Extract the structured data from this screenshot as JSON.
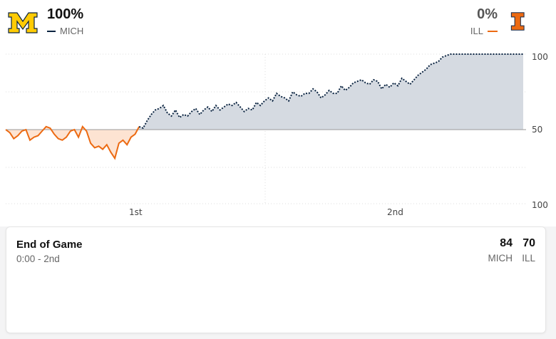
{
  "teams": {
    "home": {
      "abbr": "MICH",
      "win_prob": "100%",
      "logo": "M",
      "color": "#0b2441",
      "logo_color": "#ffcb05"
    },
    "away": {
      "abbr": "ILL",
      "win_prob": "0%",
      "logo": "I",
      "color": "#ec6a12"
    }
  },
  "chart_data": {
    "type": "area",
    "title": "",
    "x_period_labels": [
      "1st",
      "2nd"
    ],
    "y_tick_labels": [
      "100",
      "50",
      "100"
    ],
    "midline": 50,
    "ylim": [
      0,
      100
    ],
    "series": [
      {
        "name": "MICH",
        "values": [
          50,
          48,
          44,
          46,
          49,
          50,
          43,
          45,
          46,
          49,
          52,
          51,
          47,
          44,
          43,
          45,
          49,
          50,
          45,
          52,
          49,
          41,
          38,
          39,
          37,
          40,
          35,
          31,
          41,
          43,
          40,
          45,
          47,
          52,
          51,
          56,
          60,
          63,
          64,
          66,
          61,
          59,
          63,
          58,
          60,
          59,
          62,
          64,
          60,
          63,
          65,
          62,
          66,
          63,
          65,
          67,
          66,
          68,
          65,
          62,
          64,
          63,
          68,
          66,
          69,
          71,
          69,
          74,
          72,
          71,
          69,
          75,
          73,
          72,
          74,
          74,
          77,
          75,
          71,
          73,
          76,
          74,
          74,
          79,
          76,
          78,
          81,
          82,
          83,
          81,
          80,
          83,
          82,
          77,
          80,
          78,
          81,
          79,
          84,
          82,
          80,
          83,
          86,
          88,
          90,
          93,
          94,
          95,
          98,
          99,
          100,
          100,
          100,
          100,
          100,
          100,
          100,
          100,
          100,
          100,
          100,
          100,
          100,
          100,
          100,
          100,
          100,
          100,
          100
        ]
      }
    ],
    "legend": "top"
  },
  "game": {
    "status": "End of Game",
    "clock": "0:00 - 2nd",
    "home_score": "84",
    "away_score": "70"
  }
}
